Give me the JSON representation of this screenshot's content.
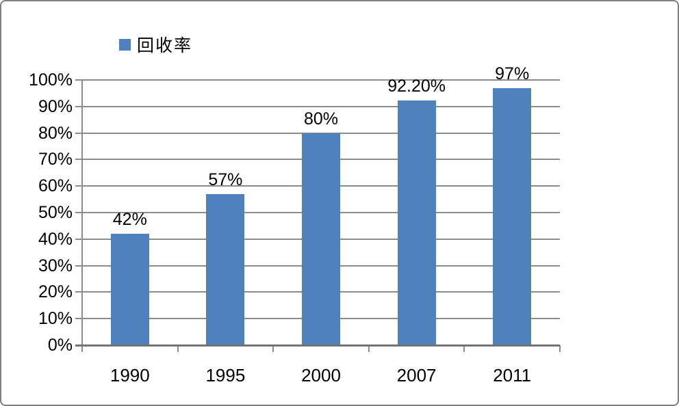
{
  "chart_data": {
    "type": "bar",
    "title": "",
    "series_name": "回收率",
    "categories": [
      "1990",
      "1995",
      "2000",
      "2007",
      "2011"
    ],
    "values": [
      42,
      57,
      80,
      92.2,
      97
    ],
    "data_labels": [
      "42%",
      "57%",
      "80%",
      "92.20%",
      "97%"
    ],
    "xlabel": "",
    "ylabel": "",
    "ylim": [
      0,
      100
    ],
    "ytick_step": 10,
    "ytick_labels": [
      "0%",
      "10%",
      "20%",
      "30%",
      "40%",
      "50%",
      "60%",
      "70%",
      "80%",
      "90%",
      "100%"
    ],
    "grid": true,
    "legend_position": "top-left",
    "colors": {
      "bar": "#4f81bd",
      "gridline": "#8c8c8c",
      "axis": "#737373",
      "text": "#000000",
      "frame_border": "#7f7f7f",
      "background": "#ffffff"
    }
  }
}
